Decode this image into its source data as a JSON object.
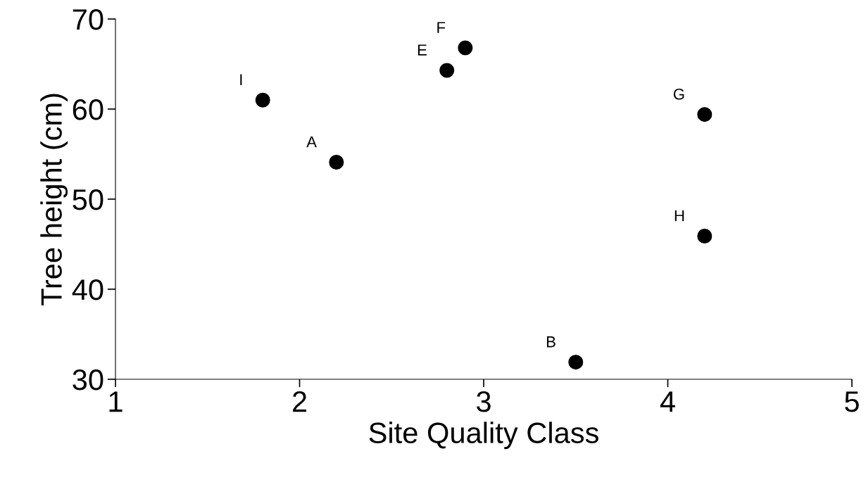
{
  "chart_data": {
    "type": "scatter",
    "xlabel": "Site Quality Class",
    "ylabel": "Tree height (cm)",
    "x": [
      1.8,
      2.2,
      2.8,
      2.9,
      4.2,
      4.2,
      3.5
    ],
    "series": [
      {
        "color": "#000000",
        "values": [
          61.0,
          54.1,
          64.3,
          66.8,
          59.4,
          45.9,
          31.9
        ]
      }
    ],
    "annotations": [
      {
        "text": "I",
        "x": 1.8,
        "y": 61.0
      },
      {
        "text": "A",
        "x": 2.2,
        "y": 54.1
      },
      {
        "text": "E",
        "x": 2.8,
        "y": 64.3
      },
      {
        "text": "F",
        "x": 2.9,
        "y": 66.8
      },
      {
        "text": "G",
        "x": 4.2,
        "y": 59.4
      },
      {
        "text": "H",
        "x": 4.2,
        "y": 45.9
      },
      {
        "text": "B",
        "x": 3.5,
        "y": 31.9
      }
    ],
    "xlim": [
      1,
      5
    ],
    "xticks": [
      1,
      2,
      3,
      4,
      5
    ],
    "ylim": [
      30,
      70
    ],
    "yticks": [
      30,
      40,
      50,
      60,
      70
    ],
    "grid": false,
    "legend": false,
    "marker": "circle"
  }
}
